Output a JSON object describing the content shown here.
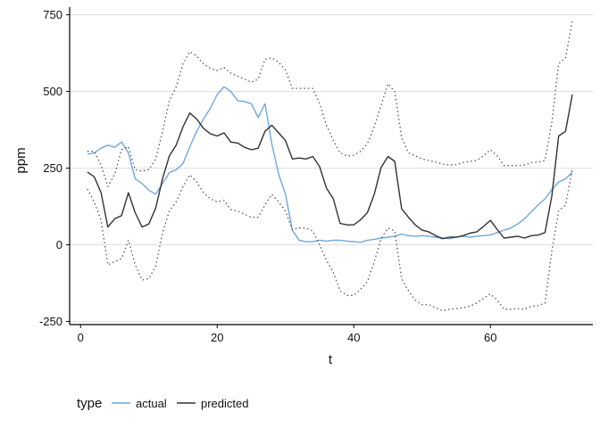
{
  "chart_data": {
    "type": "line",
    "xlabel": "t",
    "ylabel": "ppm",
    "xlim": [
      -1.6,
      75
    ],
    "ylim": [
      -260,
      775
    ],
    "x_ticks": [
      0,
      20,
      40,
      60
    ],
    "y_ticks": [
      -250,
      0,
      250,
      500,
      750
    ],
    "grid": "horizontal",
    "legend": {
      "title": "type",
      "position": "bottom-left"
    },
    "colors": {
      "actual": "#6fa8dc",
      "predicted": "#333333",
      "bounds": "#555555"
    },
    "series": [
      {
        "name": "actual",
        "style": "solid",
        "x": [
          1,
          2,
          3,
          4,
          5,
          6,
          7,
          8,
          9,
          10,
          11,
          12,
          13,
          14,
          15,
          16,
          17,
          18,
          19,
          20,
          21,
          22,
          23,
          24,
          25,
          26,
          27,
          28,
          29,
          30,
          31,
          32,
          33,
          34,
          35,
          36,
          37,
          38,
          39,
          40,
          41,
          42,
          43,
          44,
          45,
          46,
          47,
          48,
          49,
          50,
          51,
          52,
          53,
          54,
          55,
          56,
          57,
          58,
          59,
          60,
          61,
          62,
          63,
          64,
          65,
          66,
          67,
          68,
          69,
          70,
          71,
          72
        ],
        "y": [
          295,
          300,
          315,
          325,
          318,
          335,
          300,
          215,
          200,
          178,
          165,
          200,
          235,
          245,
          265,
          320,
          370,
          410,
          445,
          490,
          515,
          500,
          470,
          467,
          460,
          415,
          460,
          330,
          230,
          165,
          48,
          15,
          10,
          10,
          15,
          12,
          15,
          15,
          12,
          10,
          8,
          15,
          18,
          22,
          25,
          28,
          35,
          30,
          28,
          30,
          28,
          25,
          22,
          20,
          25,
          28,
          25,
          28,
          30,
          32,
          40,
          48,
          55,
          68,
          85,
          108,
          130,
          150,
          180,
          205,
          215,
          237
        ]
      },
      {
        "name": "predicted",
        "style": "solid",
        "x": [
          1,
          2,
          3,
          4,
          5,
          6,
          7,
          8,
          9,
          10,
          11,
          12,
          13,
          14,
          15,
          16,
          17,
          18,
          19,
          20,
          21,
          22,
          23,
          24,
          25,
          26,
          27,
          28,
          29,
          30,
          31,
          32,
          33,
          34,
          35,
          36,
          37,
          38,
          39,
          40,
          41,
          42,
          43,
          44,
          45,
          46,
          47,
          48,
          49,
          50,
          51,
          52,
          53,
          54,
          55,
          56,
          57,
          58,
          59,
          60,
          61,
          62,
          63,
          64,
          65,
          66,
          67,
          68,
          69,
          70,
          71,
          72
        ],
        "y": [
          237,
          222,
          170,
          58,
          85,
          95,
          170,
          105,
          58,
          68,
          120,
          215,
          290,
          325,
          385,
          430,
          410,
          380,
          362,
          355,
          365,
          335,
          332,
          318,
          310,
          315,
          370,
          390,
          365,
          340,
          280,
          283,
          280,
          288,
          255,
          185,
          150,
          70,
          65,
          65,
          82,
          105,
          165,
          252,
          288,
          272,
          118,
          90,
          65,
          48,
          42,
          30,
          20,
          25,
          25,
          30,
          38,
          42,
          60,
          80,
          50,
          22,
          25,
          28,
          22,
          30,
          32,
          40,
          160,
          355,
          370,
          490
        ]
      },
      {
        "style": "dotted",
        "x": [
          1,
          2,
          3,
          4,
          5,
          6,
          7,
          8,
          9,
          10,
          11,
          12,
          13,
          14,
          15,
          16,
          17,
          18,
          19,
          20,
          21,
          22,
          23,
          24,
          25,
          26,
          27,
          28,
          29,
          30,
          31,
          32,
          33,
          34,
          35,
          36,
          37,
          38,
          39,
          40,
          41,
          42,
          43,
          44,
          45,
          46,
          47,
          48,
          49,
          50,
          51,
          52,
          53,
          54,
          55,
          56,
          57,
          58,
          59,
          60,
          61,
          62,
          63,
          64,
          65,
          66,
          67,
          68,
          69,
          70,
          71,
          72
        ],
        "y": [
          305,
          305,
          260,
          190,
          230,
          310,
          320,
          245,
          240,
          245,
          280,
          370,
          470,
          515,
          590,
          630,
          615,
          590,
          575,
          568,
          578,
          560,
          550,
          540,
          530,
          540,
          605,
          610,
          595,
          570,
          510,
          510,
          510,
          510,
          460,
          390,
          340,
          300,
          290,
          292,
          305,
          330,
          385,
          455,
          525,
          500,
          350,
          300,
          290,
          280,
          275,
          270,
          263,
          260,
          262,
          268,
          272,
          275,
          290,
          310,
          290,
          258,
          258,
          258,
          260,
          268,
          270,
          275,
          400,
          590,
          610,
          730
        ]
      },
      {
        "style": "dotted",
        "x": [
          1,
          2,
          3,
          4,
          5,
          6,
          7,
          8,
          9,
          10,
          11,
          12,
          13,
          14,
          15,
          16,
          17,
          18,
          19,
          20,
          21,
          22,
          23,
          24,
          25,
          26,
          27,
          28,
          29,
          30,
          31,
          32,
          33,
          34,
          35,
          36,
          37,
          38,
          39,
          40,
          41,
          42,
          43,
          44,
          45,
          46,
          47,
          48,
          49,
          50,
          51,
          52,
          53,
          54,
          55,
          56,
          57,
          58,
          59,
          60,
          61,
          62,
          63,
          64,
          65,
          66,
          67,
          68,
          69,
          70,
          71,
          72
        ],
        "y": [
          182,
          140,
          80,
          -65,
          -55,
          -45,
          15,
          -65,
          -115,
          -110,
          -70,
          40,
          110,
          140,
          190,
          228,
          205,
          170,
          150,
          140,
          145,
          115,
          110,
          100,
          90,
          90,
          130,
          165,
          140,
          110,
          50,
          55,
          55,
          45,
          0,
          -50,
          -90,
          -150,
          -165,
          -165,
          -145,
          -120,
          -55,
          20,
          55,
          45,
          -110,
          -150,
          -180,
          -195,
          -195,
          -205,
          -215,
          -210,
          -208,
          -205,
          -200,
          -190,
          -175,
          -160,
          -180,
          -210,
          -210,
          -208,
          -210,
          -200,
          -198,
          -190,
          -20,
          110,
          130,
          245
        ]
      }
    ]
  }
}
